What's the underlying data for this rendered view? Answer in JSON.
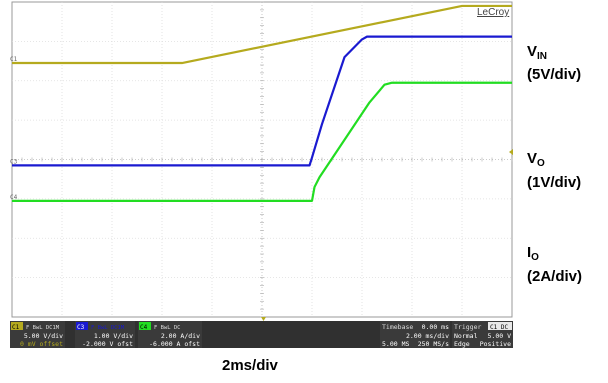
{
  "chart_data": {
    "type": "line",
    "brand": "LeCroy",
    "xlabel": "2ms/div",
    "x_divisions": 10,
    "y_divisions": 8,
    "series": [
      {
        "name": "V_IN",
        "label_main": "V",
        "label_sub": "IN",
        "scale": "(5V/div)",
        "color": "#b5aa1e",
        "points": [
          [
            0,
            6.45
          ],
          [
            3.4,
            6.45
          ],
          [
            9.0,
            7.9
          ],
          [
            10,
            7.9
          ]
        ]
      },
      {
        "name": "V_O",
        "label_main": "V",
        "label_sub": "O",
        "scale": "(1V/div)",
        "color": "#1a1ad0",
        "points": [
          [
            0,
            3.85
          ],
          [
            5.95,
            3.85
          ],
          [
            6.0,
            4.05
          ],
          [
            6.2,
            4.9
          ],
          [
            6.65,
            6.6
          ],
          [
            7.0,
            7.05
          ],
          [
            7.1,
            7.12
          ],
          [
            10,
            7.12
          ]
        ]
      },
      {
        "name": "I_O",
        "label_main": "I",
        "label_sub": "O",
        "scale": "(2A/div)",
        "color": "#22dd22",
        "points": [
          [
            0,
            2.95
          ],
          [
            6.0,
            2.95
          ],
          [
            6.05,
            3.3
          ],
          [
            6.15,
            3.55
          ],
          [
            7.15,
            5.45
          ],
          [
            7.45,
            5.9
          ],
          [
            7.6,
            5.95
          ],
          [
            10,
            5.95
          ]
        ]
      }
    ],
    "channel_markers": [
      "C1",
      "C3",
      "C4"
    ],
    "status_bar": {
      "channels": [
        {
          "id": "C1",
          "flags": "F BwL DC1M",
          "scale": "5.00 V/div",
          "offset": "0 mV offset",
          "color": "#b5aa1e"
        },
        {
          "id": "C3",
          "flags": "F BwL DC1M",
          "scale": "1.00 V/div",
          "offset": "-2.000 V ofst",
          "color": "#1a1ad0"
        },
        {
          "id": "C4",
          "flags": "F BwL DC",
          "scale": "2.00 A/div",
          "offset": "-6.000 A ofst",
          "color": "#22dd22"
        }
      ],
      "timebase": {
        "label": "Timebase",
        "delay": "0.00 ms",
        "rate": "2.00 ms/div",
        "samples": "5.00 MS",
        "srate": "250 MS/s"
      },
      "trigger": {
        "label": "Trigger",
        "src": "C1 DC",
        "mode": "Normal",
        "level": "5.00 V",
        "type": "Edge",
        "slope": "Positive"
      }
    }
  }
}
